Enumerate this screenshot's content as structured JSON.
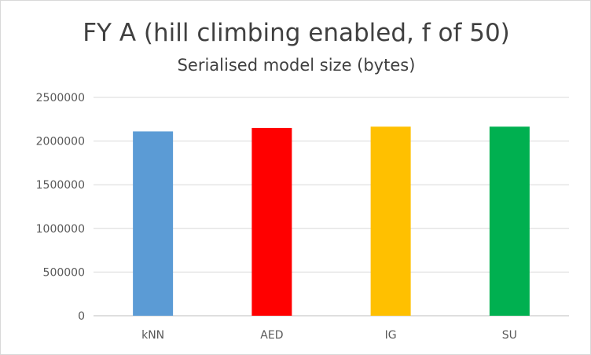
{
  "chart_data": {
    "type": "bar",
    "title": "FY A (hill climbing enabled, f of 50)",
    "subtitle": "Serialised model size (bytes)",
    "categories": [
      "kNN",
      "AED",
      "IG",
      "SU"
    ],
    "values": [
      2110000,
      2150000,
      2165000,
      2165000
    ],
    "colors": [
      "#5b9bd5",
      "#ff0000",
      "#ffc000",
      "#00b050"
    ],
    "ylim": [
      0,
      2500000
    ],
    "yticks": [
      0,
      500000,
      1000000,
      1500000,
      2000000,
      2500000
    ],
    "ytick_labels": [
      "0",
      "500000",
      "1000000",
      "1500000",
      "2000000",
      "2500000"
    ],
    "grid": true,
    "legend": "none"
  }
}
